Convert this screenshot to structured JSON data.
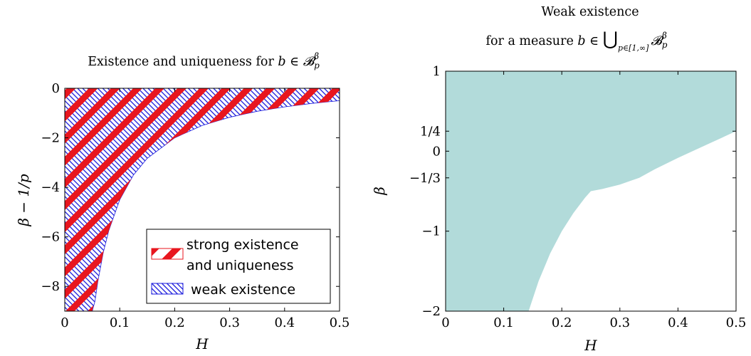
{
  "chart_data": [
    {
      "type": "area",
      "title": "Existence and uniqueness for b ∈ 𝓑_p^β",
      "title_parts": {
        "text": "Existence and uniqueness for ",
        "var": "b",
        "op": " ∈ ",
        "set": "𝓑",
        "sup": "β",
        "sub": "p"
      },
      "xlabel": "H",
      "ylabel": "β − 1/p",
      "xlim": [
        0,
        0.5
      ],
      "ylim": [
        -9,
        0
      ],
      "xticks": [
        0,
        0.1,
        0.2,
        0.3,
        0.4,
        0.5
      ],
      "xtick_labels": [
        "0",
        "0.1",
        "0.2",
        "0.3",
        "0.4",
        "0.5"
      ],
      "yticks": [
        0,
        -2,
        -4,
        -6,
        -8
      ],
      "ytick_labels": [
        "0",
        "−2",
        "−4",
        "−6",
        "−8"
      ],
      "legend_position": "bottom-right",
      "series": [
        {
          "name": "strong existence and uniqueness",
          "name_lines": [
            "strong existence",
            "and uniqueness"
          ],
          "boundary": "β − 1/p = 1/2 − 1/(2H)",
          "x": [
            0.0476,
            0.05,
            0.06,
            0.07,
            0.08,
            0.1,
            0.125,
            0.15,
            0.2,
            0.25,
            0.3,
            0.35,
            0.4,
            0.45,
            0.5
          ],
          "lower": [
            -10.0,
            -9.5,
            -7.83,
            -6.64,
            -5.75,
            -4.5,
            -3.5,
            -2.83,
            -2.0,
            -1.5,
            -1.17,
            -0.93,
            -0.75,
            -0.61,
            -0.5
          ],
          "upper": 0,
          "color": "#e8161e",
          "pattern": "diagonal-stripes"
        },
        {
          "name": "weak existence",
          "boundary": "β − 1/p = 1/2 − 1/(2H) − 1/2 (capped at 0)",
          "x": [
            0.05,
            0.055,
            0.06,
            0.07,
            0.08,
            0.1,
            0.125,
            0.15,
            0.2,
            0.25,
            0.3,
            0.35,
            0.4,
            0.45,
            0.5
          ],
          "lower": [
            -9.5,
            -8.59,
            -7.83,
            -6.64,
            -5.75,
            -4.5,
            -3.5,
            -2.83,
            -2.0,
            -1.5,
            -1.17,
            -0.93,
            -0.75,
            -0.61,
            -0.5
          ],
          "lower_weak": [
            -10.0,
            -9.09,
            -8.33,
            -7.14,
            -6.25,
            -5.0,
            -4.0,
            -3.33,
            -2.5,
            -2.0,
            -1.67,
            -1.43,
            -1.25,
            -1.11,
            -1.0
          ],
          "upper": 0,
          "color": "#1a1adc",
          "pattern": "dense-hatch"
        }
      ]
    },
    {
      "type": "area",
      "title_lines": [
        "Weak existence",
        "for a measure b ∈ ⋃ 𝓑_p^β"
      ],
      "title_parts": {
        "line1": "Weak existence",
        "line2": "for a measure ",
        "var": "b",
        "op": " ∈ ",
        "bigcup": "⋃",
        "cup_sub": "p∈[1,∞]",
        "set": "𝓑",
        "sup": "β",
        "sub": "p"
      },
      "xlabel": "H",
      "ylabel": "β",
      "xlim": [
        0,
        0.5
      ],
      "ylim": [
        -2,
        1
      ],
      "xticks": [
        0,
        0.1,
        0.2,
        0.3,
        0.4,
        0.5
      ],
      "xtick_labels": [
        "0",
        "0.1",
        "0.2",
        "0.3",
        "0.4",
        "0.5"
      ],
      "yticks": [
        1,
        0.25,
        0,
        -0.3333,
        -1,
        -2
      ],
      "ytick_labels": [
        "1",
        "1/4",
        "0",
        "−1/3",
        "−1",
        "−2"
      ],
      "series": [
        {
          "x": [
            0.1429,
            0.16,
            0.18,
            0.2,
            0.22,
            0.24,
            0.25,
            0.27,
            0.3,
            0.3333,
            0.36,
            0.4,
            0.45,
            0.5
          ],
          "lower": [
            -2.0,
            -1.625,
            -1.278,
            -1.0,
            -0.773,
            -0.583,
            -0.5,
            -0.472,
            -0.417,
            -0.333,
            -0.227,
            -0.083,
            0.0833,
            0.25
          ],
          "upper": 1,
          "color": "#b2dbda"
        }
      ]
    }
  ]
}
